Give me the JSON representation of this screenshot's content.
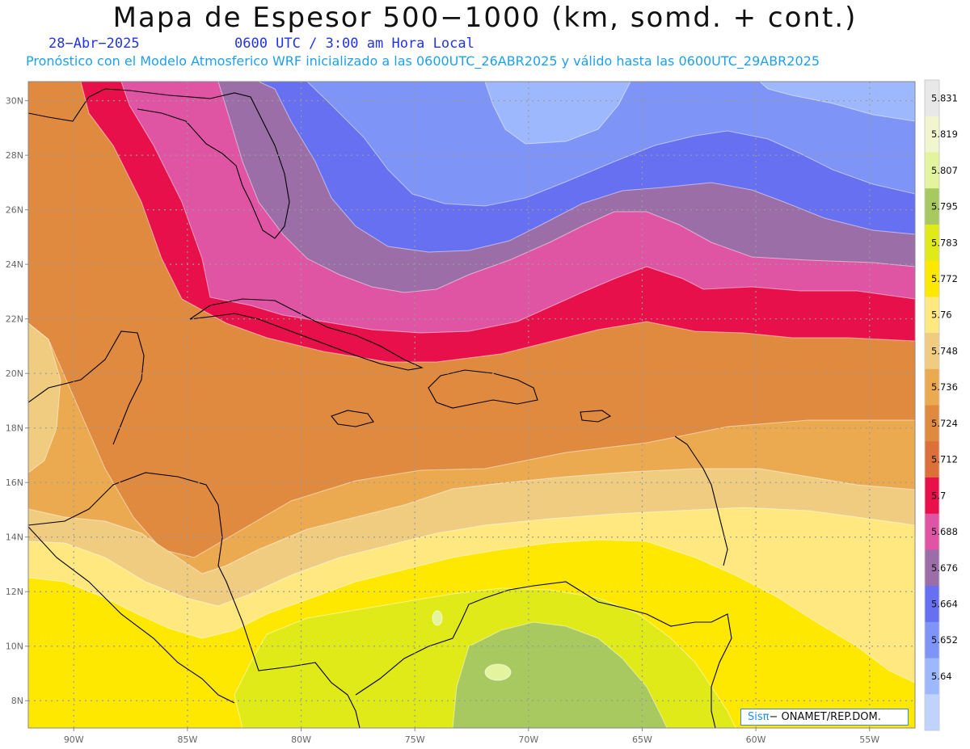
{
  "header": {
    "title": "Mapa de Espesor 500−1000 (km, somd. + cont.)",
    "date": "28−Abr−2025",
    "time": "0600 UTC / 3:00 am Hora Local",
    "model_line": "Pronóstico con el Modelo Atmosferico WRF inicializado a las 0600UTC_26ABR2025 y válido hasta las  0600UTC_29ABR2025"
  },
  "map": {
    "lat_range": [
      7,
      30.7
    ],
    "lon_range": [
      -92,
      -53
    ],
    "lat_labels": [
      {
        "lat": 30,
        "text": "30N"
      },
      {
        "lat": 28,
        "text": "28N"
      },
      {
        "lat": 26,
        "text": "26N"
      },
      {
        "lat": 24,
        "text": "24N"
      },
      {
        "lat": 22,
        "text": "22N"
      },
      {
        "lat": 20,
        "text": "20N"
      },
      {
        "lat": 18,
        "text": "18N"
      },
      {
        "lat": 16,
        "text": "16N"
      },
      {
        "lat": 14,
        "text": "14N"
      },
      {
        "lat": 12,
        "text": "12N"
      },
      {
        "lat": 10,
        "text": "10N"
      },
      {
        "lat": 8,
        "text": "8N"
      }
    ],
    "lon_labels": [
      {
        "lon": -90,
        "text": "90W"
      },
      {
        "lon": -85,
        "text": "85W"
      },
      {
        "lon": -80,
        "text": "80W"
      },
      {
        "lon": -75,
        "text": "75W"
      },
      {
        "lon": -70,
        "text": "70W"
      },
      {
        "lon": -65,
        "text": "65W"
      },
      {
        "lon": -60,
        "text": "60W"
      },
      {
        "lon": -55,
        "text": "55W"
      }
    ]
  },
  "colorbar": {
    "labels": [
      "5.831",
      "5.819",
      "5.807",
      "5.795",
      "5.783",
      "5.772",
      "5.76",
      "5.748",
      "5.736",
      "5.724",
      "5.712",
      "5.7",
      "5.688",
      "5.676",
      "5.664",
      "5.652",
      "5.64"
    ],
    "colors_top_to_bottom": [
      "#e8e8e8",
      "#f2f6cf",
      "#e4f49e",
      "#a8c860",
      "#e0ea18",
      "#ffe800",
      "#ffe880",
      "#f0cc80",
      "#ecaa50",
      "#e08a40",
      "#dc7038",
      "#e8104a",
      "#e054a4",
      "#9c6ea8",
      "#6670f0",
      "#7e94f6",
      "#9db8fc",
      "#c0d2fe"
    ]
  },
  "colors": {
    "yellow_green": "#a8c860",
    "light_green": "#e4f49e",
    "yellow_lime": "#e0ea18",
    "yellow": "#ffe800",
    "light_yellow": "#ffe880",
    "tan": "#f0cc80",
    "light_orange": "#ecaa50",
    "orange": "#e08a40",
    "red": "#e8104a",
    "pink": "#e054a4",
    "purple": "#9c6ea8",
    "blue": "#6670f0",
    "light_blue": "#7e94f6",
    "pale_blue": "#9db8fc",
    "gridline": "#9a9a9a"
  },
  "credit": {
    "sis": "Sisπ",
    "rest": "− ONAMET/REP.DOM."
  }
}
